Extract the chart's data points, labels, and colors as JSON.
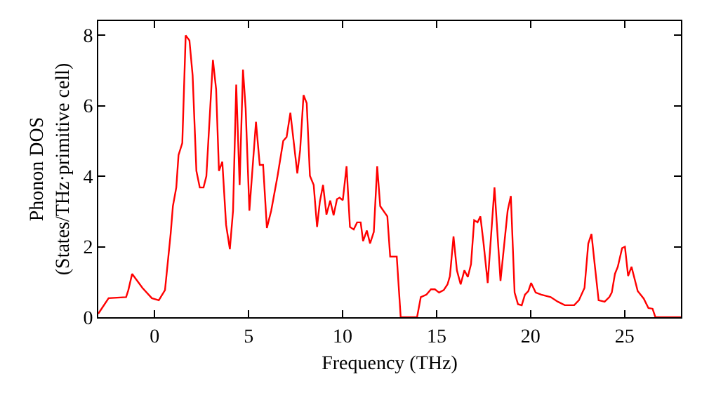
{
  "chart_data": {
    "type": "line",
    "xlabel": "Frequency (THz)",
    "ylabel": "Phonon DOS\n(States/THz·primitive cell)",
    "xlim": [
      -3,
      28
    ],
    "xticks": [
      0,
      5,
      10,
      15,
      20,
      25
    ],
    "ylim": [
      0,
      8.4
    ],
    "yticks": [
      0,
      2,
      4,
      6,
      8
    ],
    "line_style": "solid",
    "series": [
      {
        "color": "#ff0000",
        "x": [
          -3,
          -2.45,
          -1.52,
          -1.4,
          -1.2,
          -0.65,
          -0.15,
          0.22,
          0.55,
          0.85,
          0.97,
          1.15,
          1.27,
          1.47,
          1.65,
          1.85,
          2.02,
          2.22,
          2.4,
          2.6,
          2.75,
          3.1,
          3.27,
          3.42,
          3.6,
          3.8,
          4.0,
          4.17,
          4.34,
          4.52,
          4.7,
          4.84,
          5.04,
          5.39,
          5.59,
          5.77,
          5.97,
          6.2,
          6.54,
          6.84,
          7.02,
          7.22,
          7.59,
          7.74,
          7.92,
          8.09,
          8.26,
          8.46,
          8.64,
          8.79,
          8.96,
          9.14,
          9.34,
          9.52,
          9.7,
          9.84,
          10.01,
          10.21,
          10.39,
          10.59,
          10.77,
          10.96,
          11.09,
          11.29,
          11.46,
          11.66,
          11.84,
          12.0,
          12.38,
          12.53,
          12.88,
          13.09,
          13.96,
          14.16,
          14.46,
          14.7,
          14.91,
          15.13,
          15.38,
          15.58,
          15.71,
          15.9,
          16.08,
          16.28,
          16.48,
          16.66,
          16.83,
          17.0,
          17.18,
          17.33,
          17.5,
          17.72,
          18.08,
          18.4,
          18.78,
          18.95,
          19.15,
          19.33,
          19.53,
          19.7,
          19.88,
          20.03,
          20.27,
          20.57,
          21.07,
          21.45,
          21.82,
          22.32,
          22.57,
          22.87,
          23.07,
          23.24,
          23.44,
          23.62,
          23.94,
          24.19,
          24.32,
          24.49,
          24.64,
          24.87,
          25.02,
          25.19,
          25.37,
          25.7,
          26.02,
          26.27,
          26.49,
          26.64,
          28
        ],
        "values": [
          0.1,
          0.54,
          0.57,
          0.77,
          1.23,
          0.83,
          0.54,
          0.48,
          0.77,
          2.36,
          3.15,
          3.68,
          4.6,
          4.94,
          7.99,
          7.85,
          6.86,
          4.15,
          3.68,
          3.68,
          4.0,
          7.3,
          6.46,
          4.15,
          4.41,
          2.62,
          1.93,
          3.02,
          6.6,
          3.75,
          7.02,
          5.93,
          3.02,
          5.54,
          4.32,
          4.32,
          2.53,
          3.02,
          4.01,
          5.0,
          5.11,
          5.8,
          4.08,
          4.74,
          6.3,
          6.07,
          4.01,
          3.75,
          2.56,
          3.28,
          3.75,
          2.91,
          3.31,
          2.89,
          3.35,
          3.39,
          3.32,
          4.28,
          2.56,
          2.49,
          2.69,
          2.69,
          2.16,
          2.46,
          2.09,
          2.42,
          4.28,
          3.15,
          2.86,
          1.72,
          1.72,
          0,
          0,
          0.57,
          0.64,
          0.79,
          0.79,
          0.7,
          0.77,
          0.93,
          1.17,
          2.29,
          1.33,
          0.93,
          1.33,
          1.14,
          1.5,
          2.75,
          2.69,
          2.86,
          2.09,
          0.97,
          3.68,
          1.03,
          3.02,
          3.44,
          0.7,
          0.37,
          0.34,
          0.64,
          0.74,
          0.97,
          0.7,
          0.64,
          0.57,
          0.44,
          0.34,
          0.34,
          0.48,
          0.83,
          2.09,
          2.36,
          1.36,
          0.48,
          0.44,
          0.57,
          0.7,
          1.23,
          1.43,
          1.96,
          2.0,
          1.17,
          1.43,
          0.74,
          0.53,
          0.26,
          0.24,
          0,
          0
        ]
      }
    ]
  }
}
